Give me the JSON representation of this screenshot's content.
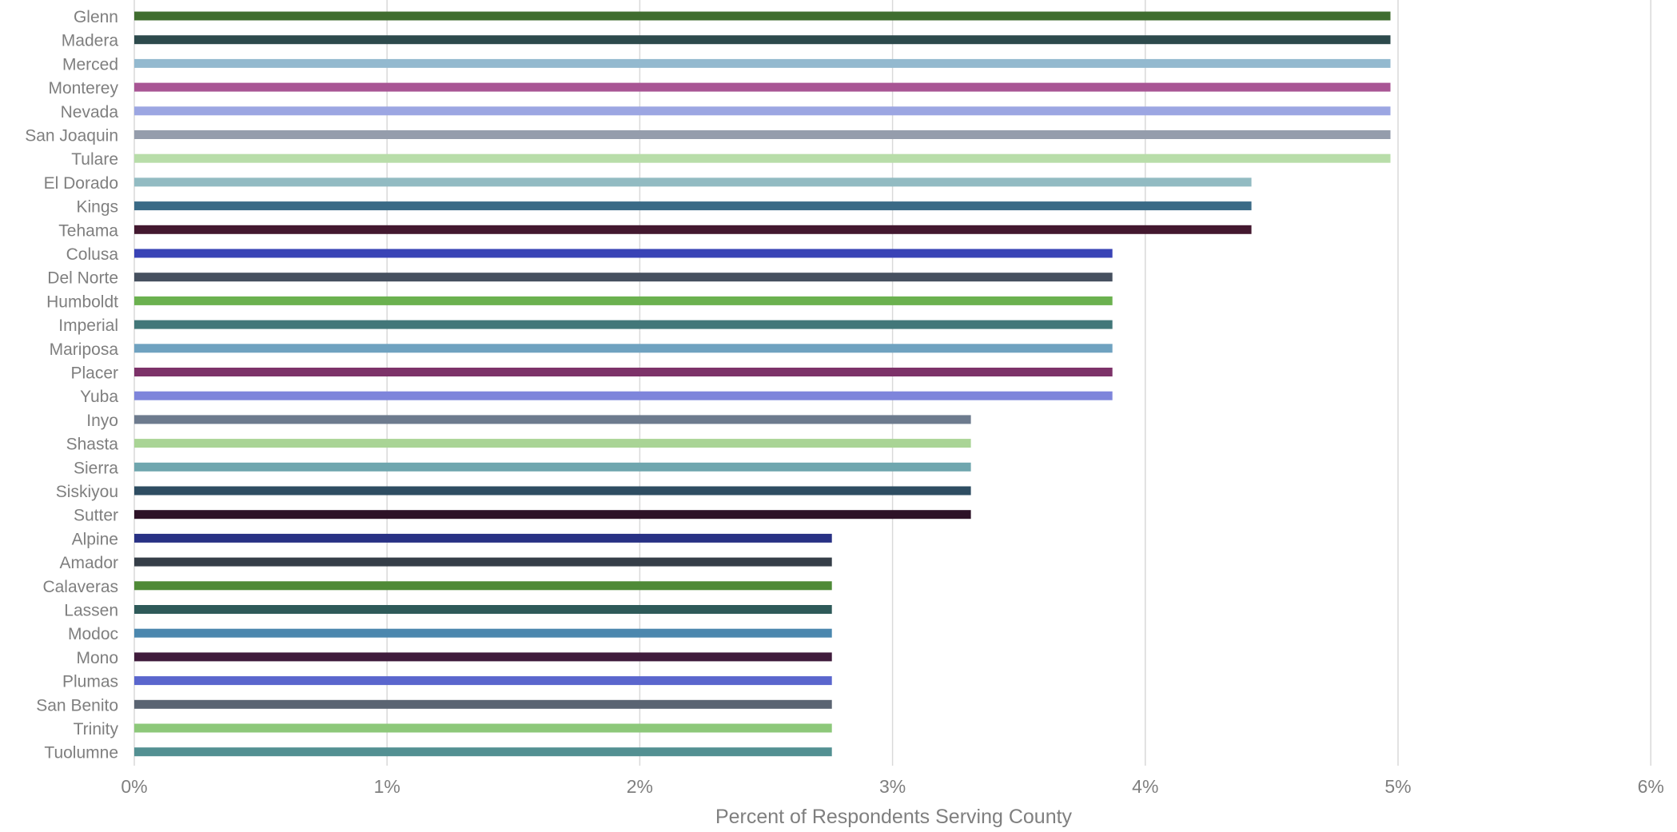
{
  "chart_data": {
    "type": "bar",
    "orientation": "horizontal",
    "title": "",
    "xlabel": "Percent of Respondents Serving County",
    "ylabel": "",
    "xlim": [
      0,
      6
    ],
    "x_ticks": [
      0,
      1,
      2,
      3,
      4,
      5,
      6
    ],
    "x_tick_labels": [
      "0%",
      "1%",
      "2%",
      "3%",
      "4%",
      "5%",
      "6%"
    ],
    "grid": "vertical",
    "legend": "none",
    "categories": [
      "Glenn",
      "Madera",
      "Merced",
      "Monterey",
      "Nevada",
      "San Joaquin",
      "Tulare",
      "El Dorado",
      "Kings",
      "Tehama",
      "Colusa",
      "Del Norte",
      "Humboldt",
      "Imperial",
      "Mariposa",
      "Placer",
      "Yuba",
      "Inyo",
      "Shasta",
      "Sierra",
      "Siskiyou",
      "Sutter",
      "Alpine",
      "Amador",
      "Calaveras",
      "Lassen",
      "Modoc",
      "Mono",
      "Plumas",
      "San Benito",
      "Trinity",
      "Tuolumne"
    ],
    "values": [
      4.97,
      4.97,
      4.97,
      4.97,
      4.97,
      4.97,
      4.97,
      4.42,
      4.42,
      4.42,
      3.87,
      3.87,
      3.87,
      3.87,
      3.87,
      3.87,
      3.87,
      3.31,
      3.31,
      3.31,
      3.31,
      3.31,
      2.76,
      2.76,
      2.76,
      2.76,
      2.76,
      2.76,
      2.76,
      2.76,
      2.76,
      2.76
    ],
    "colors": [
      "#3F6D2F",
      "#2D4A4C",
      "#93B9CF",
      "#A85594",
      "#9CA6E2",
      "#959DAC",
      "#B8DDA9",
      "#92BBC2",
      "#3A6A86",
      "#43182F",
      "#3943B6",
      "#46505F",
      "#6BB14F",
      "#427779",
      "#6FA2C0",
      "#7D3269",
      "#7E85DB",
      "#6D7B8E",
      "#A9D495",
      "#6FA6AE",
      "#2E4D62",
      "#2D1227",
      "#283184",
      "#353E48",
      "#4F8A37",
      "#2E5A59",
      "#4B87AE",
      "#401C3C",
      "#5A66CD",
      "#5A6472",
      "#8DC87A",
      "#539092"
    ]
  }
}
